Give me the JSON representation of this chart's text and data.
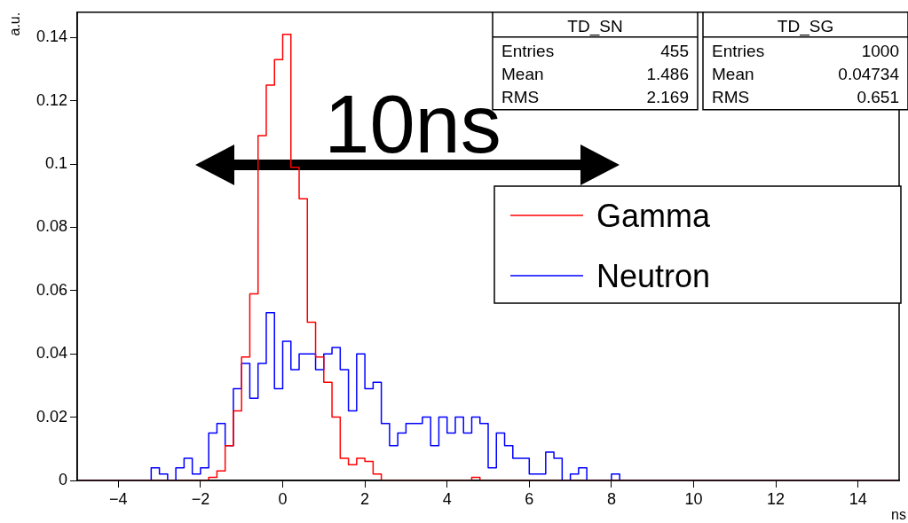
{
  "chart_data": {
    "type": "histogram",
    "xlabel": "ns",
    "ylabel": "a.u.",
    "bins": [
      -5,
      -4.8,
      -4.6,
      -4.4,
      -4.2,
      -4,
      -3.8,
      -3.6,
      -3.4,
      -3.2,
      -3,
      -2.8,
      -2.6,
      -2.4,
      -2.2,
      -2,
      -1.8,
      -1.6,
      -1.4,
      -1.2,
      -1,
      -0.8,
      -0.6,
      -0.4,
      -0.2,
      0,
      0.2,
      0.4,
      0.6,
      0.8,
      1,
      1.2,
      1.4,
      1.6,
      1.8,
      2,
      2.2,
      2.4,
      2.6,
      2.8,
      3,
      3.2,
      3.4,
      3.6,
      3.8,
      4,
      4.2,
      4.4,
      4.6,
      4.8,
      5,
      5.2,
      5.4,
      5.6,
      5.8,
      6,
      6.2,
      6.4,
      6.6,
      6.8,
      7,
      7.2,
      7.4,
      7.6,
      7.8,
      8,
      8.2,
      8.4,
      8.6,
      8.8,
      9,
      9.2,
      9.4,
      9.6,
      9.8,
      10,
      10.2,
      10.4,
      10.6,
      10.8,
      11,
      11.2,
      11.4,
      11.6,
      11.8,
      12,
      12.2,
      12.4,
      12.6,
      12.8,
      13,
      13.2,
      13.4,
      13.6,
      13.8,
      14,
      14.2,
      14.4,
      14.6,
      14.8,
      15
    ],
    "series": [
      {
        "name": "Gamma",
        "color": "#ff0000",
        "values": [
          0,
          0,
          0,
          0,
          0,
          0,
          0,
          0,
          0,
          0,
          0,
          0,
          0,
          0,
          0,
          0,
          0.001,
          0.003,
          0.011,
          0.022,
          0.039,
          0.059,
          0.109,
          0.125,
          0.133,
          0.141,
          0.099,
          0.089,
          0.05,
          0.039,
          0.031,
          0.02,
          0.007,
          0.005,
          0.007,
          0.006,
          0.002,
          0,
          0,
          0,
          0,
          0,
          0,
          0,
          0,
          0,
          0,
          0,
          0.001,
          0,
          0,
          0,
          0,
          0,
          0,
          0,
          0,
          0,
          0,
          0,
          0,
          0,
          0,
          0,
          0,
          0,
          0,
          0,
          0,
          0,
          0,
          0,
          0,
          0,
          0,
          0,
          0,
          0,
          0,
          0,
          0,
          0,
          0,
          0,
          0,
          0,
          0,
          0,
          0,
          0,
          0,
          0,
          0,
          0,
          0,
          0,
          0,
          0,
          0,
          0
        ]
      },
      {
        "name": "Neutron",
        "color": "#0000ff",
        "values": [
          0,
          0,
          0,
          0,
          0,
          0,
          0,
          0,
          0,
          0.004,
          0.002,
          0,
          0.004,
          0.007,
          0.002,
          0.004,
          0.015,
          0.018,
          0.011,
          0.029,
          0.037,
          0.026,
          0.037,
          0.053,
          0.029,
          0.044,
          0.035,
          0.04,
          0.04,
          0.035,
          0.04,
          0.042,
          0.035,
          0.022,
          0.04,
          0.029,
          0.031,
          0.018,
          0.011,
          0.015,
          0.018,
          0.018,
          0.02,
          0.011,
          0.02,
          0.015,
          0.02,
          0.015,
          0.02,
          0.018,
          0.004,
          0.015,
          0.011,
          0.007,
          0.007,
          0.002,
          0.002,
          0.009,
          0.007,
          0,
          0.002,
          0.004,
          0,
          0,
          0,
          0.002,
          0,
          0,
          0,
          0,
          0,
          0,
          0,
          0,
          0,
          0,
          0,
          0,
          0,
          0,
          0,
          0,
          0,
          0,
          0,
          0,
          0,
          0,
          0,
          0,
          0,
          0,
          0,
          0,
          0,
          0,
          0,
          0,
          0,
          0
        ]
      }
    ],
    "xlim": [
      -5,
      15
    ],
    "xticks": [
      -4,
      -2,
      0,
      2,
      4,
      6,
      8,
      10,
      12,
      14
    ],
    "ylim": [
      0,
      0.148
    ],
    "yticks": [
      0,
      0.02,
      0.04,
      0.06,
      0.08,
      0.1,
      0.12,
      0.14
    ],
    "grid": false,
    "legend": "top right",
    "annotations": [
      "10ns",
      "TD_SN",
      "Entries 455",
      "Mean 1.486",
      "RMS 2.169",
      "TD_SG",
      "Entries 1000",
      "Mean 0.04734",
      "RMS 0.651"
    ]
  }
}
